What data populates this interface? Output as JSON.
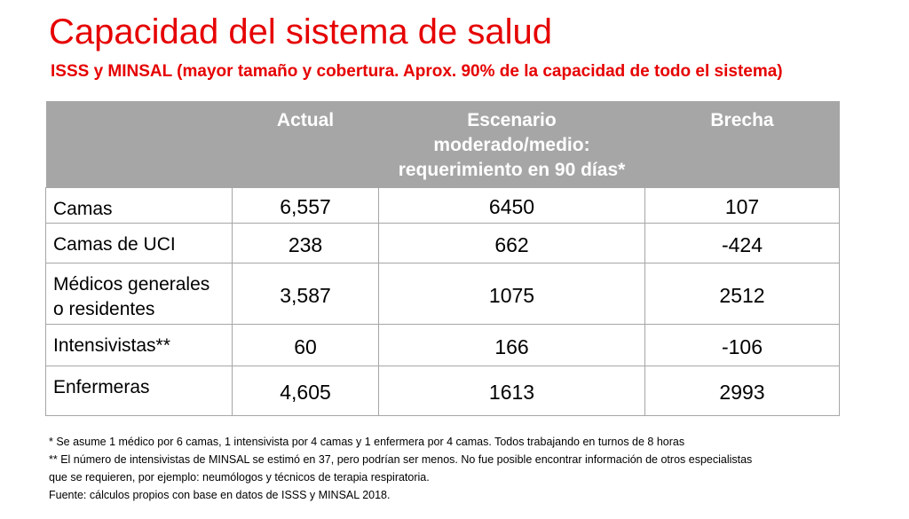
{
  "title": "Capacidad del sistema de salud",
  "subtitle": "ISSS y MINSAL (mayor tamaño y cobertura. Aprox. 90% de la capacidad de todo el sistema)",
  "table": {
    "headers": [
      "",
      "Actual",
      "Escenario moderado/medio: requerimiento en 90 días*",
      "Brecha"
    ],
    "header_scenario_lines": [
      "Escenario",
      "moderado/medio:",
      "requerimiento en 90 días*"
    ],
    "rows": [
      {
        "label": "Camas",
        "actual": "6,557",
        "escenario": "6450",
        "brecha": "107",
        "negative": false
      },
      {
        "label": "Camas de UCI",
        "actual": "238",
        "escenario": "662",
        "brecha": "-424",
        "negative": true
      },
      {
        "label": "Médicos generales o residentes",
        "actual": "3,587",
        "escenario": "1075",
        "brecha": "2512",
        "negative": false
      },
      {
        "label": "Intensivistas**",
        "actual": "60",
        "escenario": "166",
        "brecha": "-106",
        "negative": true
      },
      {
        "label": "Enfermeras",
        "actual": "4,605",
        "escenario": "1613",
        "brecha": "2993",
        "negative": false
      }
    ]
  },
  "notes": [
    "* Se asume 1 médico por 6 camas, 1 intensivista por 4 camas y 1 enfermera por 4 camas. Todos trabajando en turnos de 8 horas",
    "** El número de intensivistas de MINSAL se estimó en 37, pero podrían ser menos. No fue posible encontrar información de otros especialistas",
    "que se requieren, por ejemplo: neumólogos y técnicos de terapia respiratoria.",
    "Fuente: cálculos propios con base en datos de ISSS y MINSAL 2018."
  ],
  "colors": {
    "accent": "#e60000",
    "header_bg": "#a6a6a6"
  }
}
